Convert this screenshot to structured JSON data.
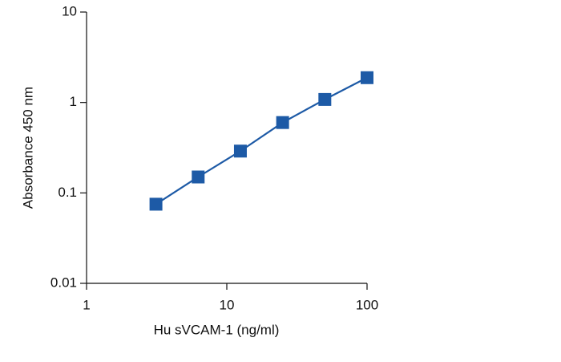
{
  "chart_data": {
    "type": "line",
    "xlabel": "Hu sVCAM-1 (ng/ml)",
    "ylabel": "Absorbance 450 nm",
    "x": [
      3.125,
      6.25,
      12.5,
      25,
      50,
      100
    ],
    "series": [
      {
        "color": "#1d5aa6",
        "values": [
          0.075,
          0.15,
          0.29,
          0.6,
          1.08,
          1.88
        ]
      }
    ],
    "xlim": [
      1,
      100
    ],
    "ylim": [
      0.01,
      10
    ],
    "xticks": [
      1,
      10,
      100
    ],
    "yticks": [
      0.01,
      0.1,
      1,
      10
    ],
    "xlog": true,
    "ylog": true,
    "grid": false
  }
}
